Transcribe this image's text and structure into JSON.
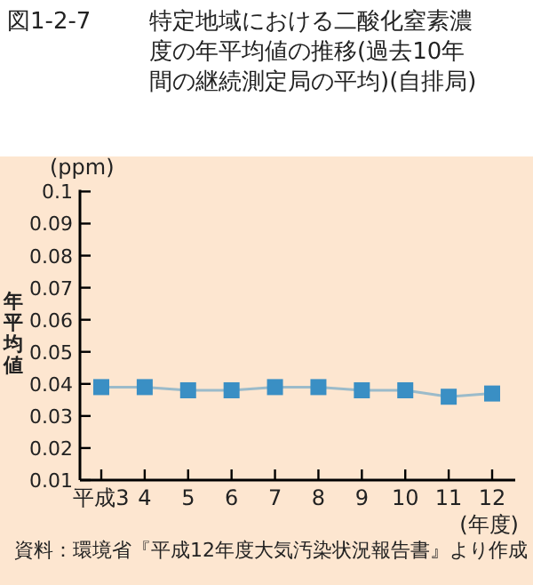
{
  "chart_data": {
    "type": "line",
    "title": "図1-2-7",
    "subtitle": "特定地域における二酸化窒素濃度の年平均値の推移(過去10年間の継続測定局の平均)(自排局)",
    "ylabel": "年平均値",
    "xlabel": "(年度)",
    "annotations": [
      "(ppm)",
      "資料：環境省『平成12年度大気汚染状況報告書』より作成"
    ],
    "categories": [
      "平成3",
      "4",
      "5",
      "6",
      "7",
      "8",
      "9",
      "10",
      "11",
      "12"
    ],
    "series": [
      {
        "color": "#3a8fc4",
        "values": [
          0.039,
          0.039,
          0.038,
          0.038,
          0.039,
          0.039,
          0.038,
          0.038,
          0.036,
          0.037
        ]
      }
    ],
    "ylim": [
      0.01,
      0.1
    ],
    "yticks": [
      0.01,
      0.02,
      0.03,
      0.04,
      0.05,
      0.06,
      0.07,
      0.08,
      0.09,
      0.1
    ],
    "marker": "square",
    "line_style": "solid",
    "grid": false
  }
}
